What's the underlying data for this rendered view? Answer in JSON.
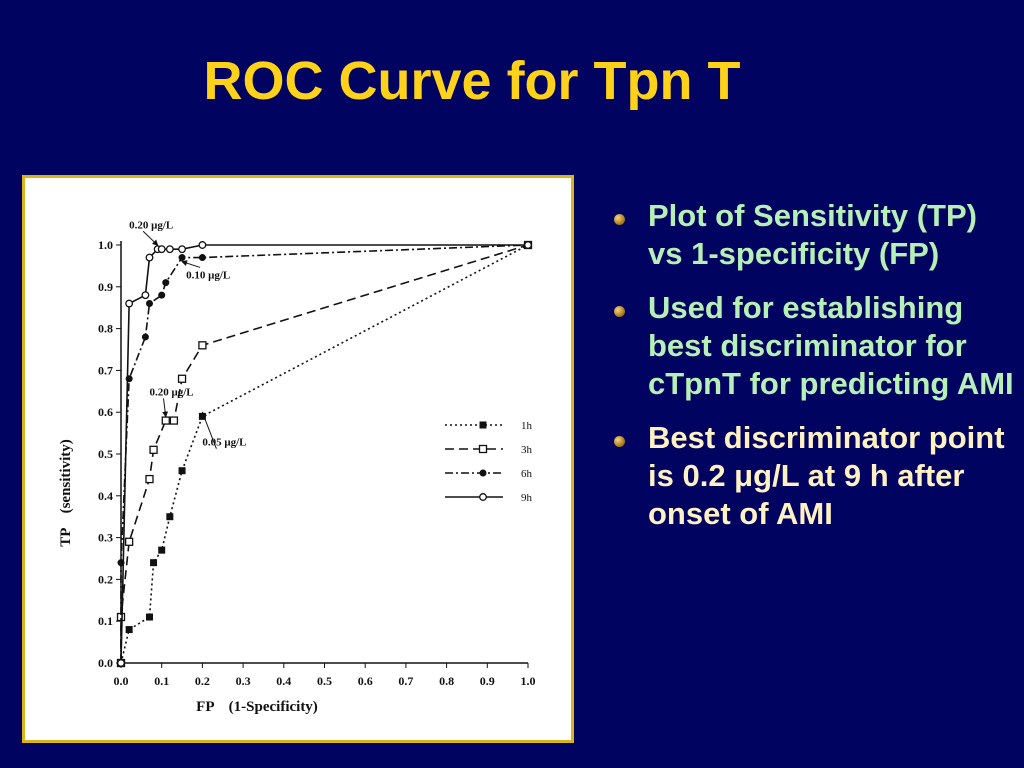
{
  "slide": {
    "title": "ROC Curve for Tpn T"
  },
  "bullets": [
    {
      "text": "Plot of Sensitivity (TP) vs 1-specificity (FP)",
      "color": "#b6f0b6"
    },
    {
      "text": "Used for establishing best discriminator for cTpnT for predicting AMI",
      "color": "#b6f0b6"
    },
    {
      "text": "Best discriminator point is 0.2 μg/L at 9 h after onset of AMI",
      "color": "#fff1c2"
    }
  ],
  "colors": {
    "background": "#00035f",
    "title": "#ffd21a",
    "frame_border": "#d9b51b"
  },
  "chart_data": {
    "type": "line",
    "xlabel": "FP    (1-Specificity)",
    "ylabel": "TP    (sensitivity)",
    "xlim": [
      0,
      1.0
    ],
    "ylim": [
      0,
      1.0
    ],
    "xticks": [
      "0.0",
      "0.1",
      "0.2",
      "0.3",
      "0.4",
      "0.5",
      "0.6",
      "0.7",
      "0.8",
      "0.9",
      "1.0"
    ],
    "yticks": [
      "0.0",
      "0.1",
      "0.2",
      "0.3",
      "0.4",
      "0.5",
      "0.6",
      "0.7",
      "0.8",
      "0.9",
      "1.0"
    ],
    "grid": false,
    "legend_position": "center-right",
    "series": [
      {
        "name": "1h",
        "line": "dotted",
        "marker": "filled-square",
        "x": [
          0.0,
          0.02,
          0.07,
          0.08,
          0.1,
          0.12,
          0.15,
          0.2,
          1.0
        ],
        "y": [
          0.0,
          0.08,
          0.11,
          0.24,
          0.27,
          0.35,
          0.46,
          0.59,
          1.0
        ]
      },
      {
        "name": "3h",
        "line": "dashed",
        "marker": "open-square",
        "x": [
          0.0,
          0.0,
          0.02,
          0.07,
          0.08,
          0.11,
          0.13,
          0.15,
          0.2,
          1.0
        ],
        "y": [
          0.0,
          0.11,
          0.29,
          0.44,
          0.51,
          0.58,
          0.58,
          0.68,
          0.76,
          1.0
        ]
      },
      {
        "name": "6h",
        "line": "dash-dot",
        "marker": "filled-circle",
        "x": [
          0.0,
          0.0,
          0.02,
          0.06,
          0.07,
          0.1,
          0.11,
          0.15,
          0.2,
          1.0
        ],
        "y": [
          0.0,
          0.24,
          0.68,
          0.78,
          0.86,
          0.88,
          0.91,
          0.97,
          0.97,
          1.0
        ]
      },
      {
        "name": "9h",
        "line": "solid",
        "marker": "open-circle",
        "x": [
          0.0,
          0.02,
          0.06,
          0.07,
          0.09,
          0.1,
          0.12,
          0.15,
          0.2,
          1.0
        ],
        "y": [
          0.0,
          0.86,
          0.88,
          0.97,
          0.99,
          0.99,
          0.99,
          0.99,
          1.0,
          1.0
        ]
      }
    ],
    "annotations": [
      {
        "text": "0.20    μg/L",
        "x": 0.02,
        "y": 1.04
      },
      {
        "text": "0.10    μg/L",
        "x": 0.16,
        "y": 0.92
      },
      {
        "text": "0.20    μg/L",
        "x": 0.07,
        "y": 0.64
      },
      {
        "text": "0.05    μg/L",
        "x": 0.2,
        "y": 0.52
      }
    ]
  }
}
